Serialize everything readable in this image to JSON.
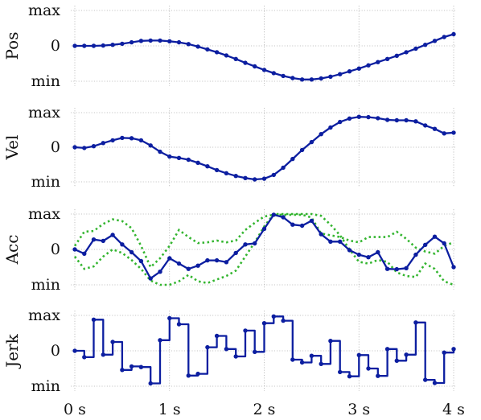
{
  "chart_data": {
    "type": "line",
    "x_ticks": [
      {
        "v": 0,
        "label": "0 s"
      },
      {
        "v": 1,
        "label": "1 s"
      },
      {
        "v": 2,
        "label": "2 s"
      },
      {
        "v": 3,
        "label": "3 s"
      },
      {
        "v": 4,
        "label": "4 s"
      }
    ],
    "y_tick_labels": [
      "max",
      "0",
      "min"
    ],
    "panels": [
      {
        "ylabel": "Pos",
        "style": "line",
        "dots": true,
        "x": [
          0,
          0.1,
          0.2,
          0.3,
          0.4,
          0.5,
          0.6,
          0.7,
          0.8,
          0.9,
          1.0,
          1.1,
          1.2,
          1.3,
          1.4,
          1.5,
          1.6,
          1.7,
          1.8,
          1.9,
          2.0,
          2.1,
          2.2,
          2.3,
          2.4,
          2.5,
          2.6,
          2.7,
          2.8,
          2.9,
          3.0,
          3.1,
          3.2,
          3.3,
          3.4,
          3.5,
          3.6,
          3.7,
          3.8,
          3.9,
          4.0
        ],
        "y": [
          0,
          0,
          0,
          0.01,
          0.03,
          0.06,
          0.1,
          0.14,
          0.15,
          0.15,
          0.13,
          0.1,
          0.05,
          -0.02,
          -0.1,
          -0.18,
          -0.27,
          -0.37,
          -0.48,
          -0.58,
          -0.68,
          -0.77,
          -0.85,
          -0.91,
          -0.95,
          -0.95,
          -0.92,
          -0.87,
          -0.8,
          -0.72,
          -0.64,
          -0.55,
          -0.46,
          -0.37,
          -0.28,
          -0.18,
          -0.08,
          0.03,
          0.14,
          0.25,
          0.33
        ]
      },
      {
        "ylabel": "Vel",
        "style": "line",
        "dots": true,
        "x": [
          0,
          0.1,
          0.2,
          0.3,
          0.4,
          0.5,
          0.6,
          0.7,
          0.8,
          0.9,
          1.0,
          1.1,
          1.2,
          1.3,
          1.4,
          1.5,
          1.6,
          1.7,
          1.8,
          1.9,
          2.0,
          2.1,
          2.2,
          2.3,
          2.4,
          2.5,
          2.6,
          2.7,
          2.8,
          2.9,
          3.0,
          3.1,
          3.2,
          3.3,
          3.4,
          3.5,
          3.6,
          3.7,
          3.8,
          3.9,
          4.0
        ],
        "y": [
          0,
          -0.02,
          0.03,
          0.12,
          0.2,
          0.27,
          0.26,
          0.2,
          0.05,
          -0.13,
          -0.27,
          -0.31,
          -0.36,
          -0.45,
          -0.55,
          -0.66,
          -0.75,
          -0.83,
          -0.89,
          -0.93,
          -0.91,
          -0.8,
          -0.59,
          -0.34,
          -0.08,
          0.15,
          0.38,
          0.57,
          0.73,
          0.83,
          0.88,
          0.87,
          0.84,
          0.79,
          0.78,
          0.78,
          0.75,
          0.63,
          0.53,
          0.4,
          0.42
        ]
      },
      {
        "ylabel": "Acc",
        "style": "line",
        "dots": true,
        "x": [
          0,
          0.1,
          0.2,
          0.3,
          0.4,
          0.5,
          0.6,
          0.7,
          0.8,
          0.9,
          1.0,
          1.1,
          1.2,
          1.3,
          1.4,
          1.5,
          1.6,
          1.7,
          1.8,
          1.9,
          2.0,
          2.1,
          2.2,
          2.3,
          2.4,
          2.5,
          2.6,
          2.7,
          2.8,
          2.9,
          3.0,
          3.1,
          3.2,
          3.3,
          3.4,
          3.5,
          3.6,
          3.7,
          3.8,
          3.9,
          4.0
        ],
        "y": [
          0,
          -0.12,
          0.28,
          0.24,
          0.41,
          0.14,
          -0.08,
          -0.33,
          -0.82,
          -0.63,
          -0.25,
          -0.4,
          -0.55,
          -0.46,
          -0.31,
          -0.31,
          -0.36,
          -0.1,
          0.14,
          0.17,
          0.58,
          0.98,
          0.91,
          0.7,
          0.67,
          0.81,
          0.43,
          0.22,
          0.22,
          -0.02,
          -0.15,
          -0.22,
          -0.08,
          -0.55,
          -0.56,
          -0.53,
          -0.15,
          0.13,
          0.36,
          0.17,
          -0.5
        ],
        "bounds": [
          {
            "x": [
              0,
              0.1,
              0.2,
              0.3,
              0.4,
              0.5,
              0.6,
              0.7,
              0.8,
              0.9,
              1.0,
              1.1,
              1.2,
              1.3,
              1.4,
              1.5,
              1.6,
              1.7,
              1.8,
              1.9,
              2.0,
              2.1,
              2.2,
              2.3,
              2.4,
              2.5,
              2.6,
              2.7,
              2.8,
              2.9,
              3.0,
              3.1,
              3.2,
              3.3,
              3.4,
              3.5,
              3.6,
              3.7,
              3.8,
              3.9,
              4.0
            ],
            "y": [
              0.1,
              0.5,
              0.52,
              0.72,
              0.85,
              0.8,
              0.6,
              0.1,
              -0.5,
              -0.25,
              0.1,
              0.55,
              0.35,
              0.18,
              0.2,
              0.25,
              0.2,
              0.25,
              0.55,
              0.75,
              0.93,
              0.98,
              0.98,
              0.98,
              0.98,
              0.9,
              0.45,
              0.4,
              0.35,
              0.25,
              0.2,
              0.35,
              0.35,
              0.35,
              0.5,
              0.3,
              0.05,
              -0.06,
              -0.12,
              0.1,
              0.2
            ]
          },
          {
            "x": [
              0,
              0.1,
              0.2,
              0.3,
              0.4,
              0.5,
              0.6,
              0.7,
              0.8,
              0.9,
              1.0,
              1.1,
              1.2,
              1.3,
              1.4,
              1.5,
              1.6,
              1.7,
              1.8,
              1.9,
              2.0,
              2.1,
              2.2,
              2.3,
              2.4,
              2.5,
              2.6,
              2.7,
              2.8,
              2.9,
              3.0,
              3.1,
              3.2,
              3.3,
              3.4,
              3.5,
              3.6,
              3.7,
              3.8,
              3.9,
              4.0
            ],
            "y": [
              -0.2,
              -0.55,
              -0.48,
              -0.2,
              0,
              -0.1,
              -0.3,
              -0.55,
              -0.88,
              -1.0,
              -1.0,
              -0.9,
              -0.72,
              -0.9,
              -0.95,
              -0.85,
              -0.75,
              -0.6,
              -0.2,
              0.2,
              0.65,
              1.0,
              1.0,
              1.0,
              1.0,
              1.0,
              0.95,
              0.7,
              0.4,
              0,
              -0.35,
              -0.4,
              -0.3,
              -0.35,
              -0.65,
              -0.75,
              -0.78,
              -0.4,
              -0.55,
              -0.9,
              -1.0
            ]
          }
        ]
      },
      {
        "ylabel": "Jerk",
        "style": "step",
        "dots": true,
        "x": [
          0,
          0.1,
          0.2,
          0.3,
          0.4,
          0.5,
          0.6,
          0.7,
          0.8,
          0.9,
          1.0,
          1.1,
          1.2,
          1.3,
          1.4,
          1.5,
          1.6,
          1.7,
          1.8,
          1.9,
          2.0,
          2.1,
          2.2,
          2.3,
          2.4,
          2.5,
          2.6,
          2.7,
          2.8,
          2.9,
          3.0,
          3.1,
          3.2,
          3.3,
          3.4,
          3.5,
          3.6,
          3.7,
          3.8,
          3.9,
          4.0
        ],
        "y": [
          0,
          -0.18,
          0.88,
          -0.11,
          0.25,
          -0.54,
          -0.44,
          -0.46,
          -0.92,
          0.3,
          0.92,
          0.75,
          -0.7,
          -0.65,
          0.1,
          0.42,
          0.05,
          -0.16,
          0.57,
          -0.03,
          0.78,
          0.97,
          0.85,
          -0.25,
          -0.33,
          -0.14,
          -0.37,
          0.28,
          -0.6,
          -0.72,
          -0.12,
          -0.5,
          -0.71,
          0.05,
          -0.28,
          -0.11,
          0.8,
          -0.82,
          -0.91,
          -0.05,
          0.05
        ]
      }
    ]
  }
}
